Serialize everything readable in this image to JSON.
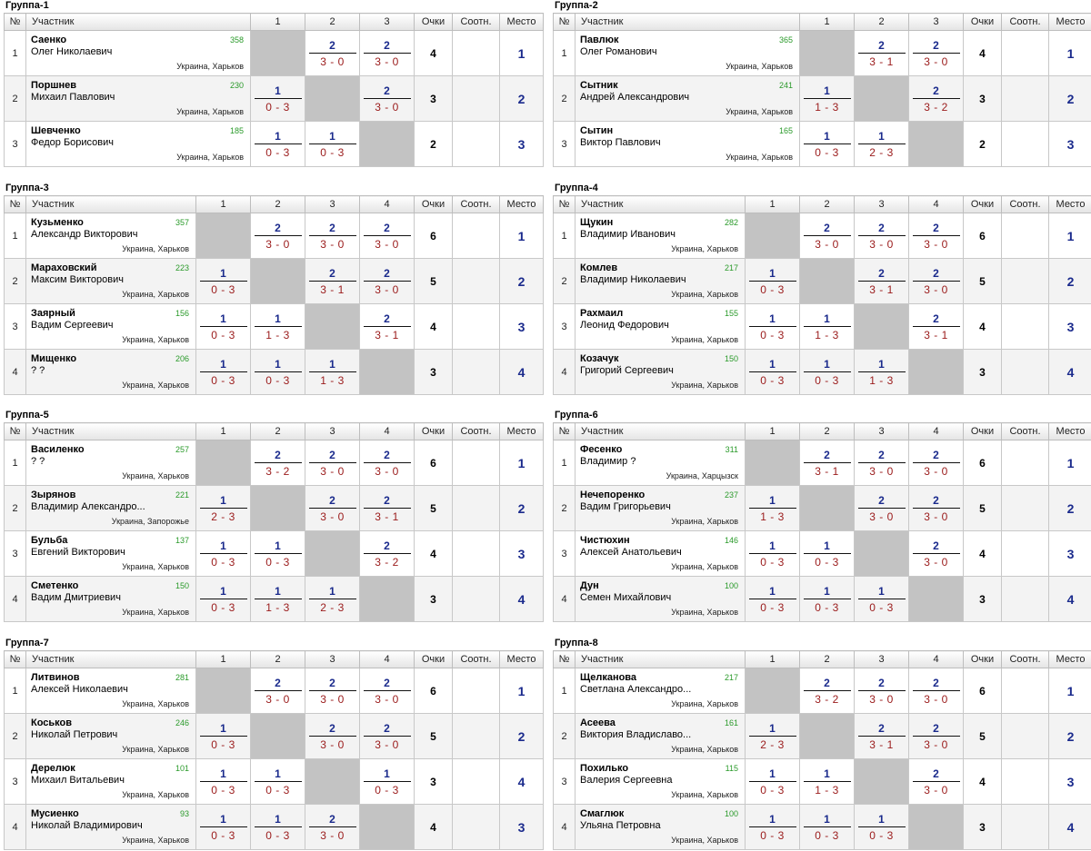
{
  "labels": {
    "num": "№",
    "participant": "Участник",
    "points": "Очки",
    "ratio": "Соотн.",
    "place": "Место"
  },
  "groups": [
    {
      "title": "Группа-1",
      "cols": [
        "1",
        "2",
        "3"
      ],
      "players": [
        {
          "num": "1",
          "surname": "Саенко",
          "firstname": "Олег Николаевич",
          "rating": "358",
          "city": "Украина, Харьков",
          "results": [
            null,
            {
              "w": "2",
              "s": "3 - 0"
            },
            {
              "w": "2",
              "s": "3 - 0"
            }
          ],
          "points": "4",
          "ratio": "",
          "place": "1"
        },
        {
          "num": "2",
          "surname": "Поршнев",
          "firstname": "Михаил Павлович",
          "rating": "230",
          "city": "Украина, Харьков",
          "results": [
            {
              "w": "1",
              "s": "0 - 3"
            },
            null,
            {
              "w": "2",
              "s": "3 - 0"
            }
          ],
          "points": "3",
          "ratio": "",
          "place": "2"
        },
        {
          "num": "3",
          "surname": "Шевченко",
          "firstname": "Федор Борисович",
          "rating": "185",
          "city": "Украина, Харьков",
          "results": [
            {
              "w": "1",
              "s": "0 - 3"
            },
            {
              "w": "1",
              "s": "0 - 3"
            },
            null
          ],
          "points": "2",
          "ratio": "",
          "place": "3"
        }
      ]
    },
    {
      "title": "Группа-2",
      "cols": [
        "1",
        "2",
        "3"
      ],
      "players": [
        {
          "num": "1",
          "surname": "Павлюк",
          "firstname": "Олег Романович",
          "rating": "365",
          "city": "Украина, Харьков",
          "results": [
            null,
            {
              "w": "2",
              "s": "3 - 1"
            },
            {
              "w": "2",
              "s": "3 - 0"
            }
          ],
          "points": "4",
          "ratio": "",
          "place": "1"
        },
        {
          "num": "2",
          "surname": "Сытник",
          "firstname": "Андрей Александрович",
          "rating": "241",
          "city": "Украина, Харьков",
          "results": [
            {
              "w": "1",
              "s": "1 - 3"
            },
            null,
            {
              "w": "2",
              "s": "3 - 2"
            }
          ],
          "points": "3",
          "ratio": "",
          "place": "2"
        },
        {
          "num": "3",
          "surname": "Сытин",
          "firstname": "Виктор Павлович",
          "rating": "165",
          "city": "Украина, Харьков",
          "results": [
            {
              "w": "1",
              "s": "0 - 3"
            },
            {
              "w": "1",
              "s": "2 - 3"
            },
            null
          ],
          "points": "2",
          "ratio": "",
          "place": "3"
        }
      ]
    },
    {
      "title": "Группа-3",
      "cols": [
        "1",
        "2",
        "3",
        "4"
      ],
      "players": [
        {
          "num": "1",
          "surname": "Кузьменко",
          "firstname": "Александр Викторович",
          "rating": "357",
          "city": "Украина, Харьков",
          "results": [
            null,
            {
              "w": "2",
              "s": "3 - 0"
            },
            {
              "w": "2",
              "s": "3 - 0"
            },
            {
              "w": "2",
              "s": "3 - 0"
            }
          ],
          "points": "6",
          "ratio": "",
          "place": "1"
        },
        {
          "num": "2",
          "surname": "Мараховский",
          "firstname": "Максим Викторович",
          "rating": "223",
          "city": "Украина, Харьков",
          "results": [
            {
              "w": "1",
              "s": "0 - 3"
            },
            null,
            {
              "w": "2",
              "s": "3 - 1"
            },
            {
              "w": "2",
              "s": "3 - 0"
            }
          ],
          "points": "5",
          "ratio": "",
          "place": "2"
        },
        {
          "num": "3",
          "surname": "Заярный",
          "firstname": "Вадим Сергеевич",
          "rating": "156",
          "city": "Украина, Харьков",
          "results": [
            {
              "w": "1",
              "s": "0 - 3"
            },
            {
              "w": "1",
              "s": "1 - 3"
            },
            null,
            {
              "w": "2",
              "s": "3 - 1"
            }
          ],
          "points": "4",
          "ratio": "",
          "place": "3"
        },
        {
          "num": "4",
          "surname": "Мищенко",
          "firstname": "? ?",
          "rating": "206",
          "city": "Украина, Харьков",
          "results": [
            {
              "w": "1",
              "s": "0 - 3"
            },
            {
              "w": "1",
              "s": "0 - 3"
            },
            {
              "w": "1",
              "s": "1 - 3"
            },
            null
          ],
          "points": "3",
          "ratio": "",
          "place": "4"
        }
      ]
    },
    {
      "title": "Группа-4",
      "cols": [
        "1",
        "2",
        "3",
        "4"
      ],
      "players": [
        {
          "num": "1",
          "surname": "Щукин",
          "firstname": "Владимир Иванович",
          "rating": "282",
          "city": "Украина, Харьков",
          "results": [
            null,
            {
              "w": "2",
              "s": "3 - 0"
            },
            {
              "w": "2",
              "s": "3 - 0"
            },
            {
              "w": "2",
              "s": "3 - 0"
            }
          ],
          "points": "6",
          "ratio": "",
          "place": "1"
        },
        {
          "num": "2",
          "surname": "Комлев",
          "firstname": "Владимир Николаевич",
          "rating": "217",
          "city": "Украина, Харьков",
          "results": [
            {
              "w": "1",
              "s": "0 - 3"
            },
            null,
            {
              "w": "2",
              "s": "3 - 1"
            },
            {
              "w": "2",
              "s": "3 - 0"
            }
          ],
          "points": "5",
          "ratio": "",
          "place": "2"
        },
        {
          "num": "3",
          "surname": "Рахмаил",
          "firstname": "Леонид Федорович",
          "rating": "155",
          "city": "Украина, Харьков",
          "results": [
            {
              "w": "1",
              "s": "0 - 3"
            },
            {
              "w": "1",
              "s": "1 - 3"
            },
            null,
            {
              "w": "2",
              "s": "3 - 1"
            }
          ],
          "points": "4",
          "ratio": "",
          "place": "3"
        },
        {
          "num": "4",
          "surname": "Козачук",
          "firstname": "Григорий Сергеевич",
          "rating": "150",
          "city": "Украина, Харьков",
          "results": [
            {
              "w": "1",
              "s": "0 - 3"
            },
            {
              "w": "1",
              "s": "0 - 3"
            },
            {
              "w": "1",
              "s": "1 - 3"
            },
            null
          ],
          "points": "3",
          "ratio": "",
          "place": "4"
        }
      ]
    },
    {
      "title": "Группа-5",
      "cols": [
        "1",
        "2",
        "3",
        "4"
      ],
      "players": [
        {
          "num": "1",
          "surname": "Василенко",
          "firstname": "? ?",
          "rating": "257",
          "city": "Украина, Харьков",
          "results": [
            null,
            {
              "w": "2",
              "s": "3 - 2"
            },
            {
              "w": "2",
              "s": "3 - 0"
            },
            {
              "w": "2",
              "s": "3 - 0"
            }
          ],
          "points": "6",
          "ratio": "",
          "place": "1"
        },
        {
          "num": "2",
          "surname": "Зырянов",
          "firstname": "Владимир Александро...",
          "rating": "221",
          "city": "Украина, Запорожье",
          "results": [
            {
              "w": "1",
              "s": "2 - 3"
            },
            null,
            {
              "w": "2",
              "s": "3 - 0"
            },
            {
              "w": "2",
              "s": "3 - 1"
            }
          ],
          "points": "5",
          "ratio": "",
          "place": "2"
        },
        {
          "num": "3",
          "surname": "Бульба",
          "firstname": "Евгений Викторович",
          "rating": "137",
          "city": "Украина, Харьков",
          "results": [
            {
              "w": "1",
              "s": "0 - 3"
            },
            {
              "w": "1",
              "s": "0 - 3"
            },
            null,
            {
              "w": "2",
              "s": "3 - 2"
            }
          ],
          "points": "4",
          "ratio": "",
          "place": "3"
        },
        {
          "num": "4",
          "surname": "Сметенко",
          "firstname": "Вадим Дмитриевич",
          "rating": "150",
          "city": "Украина, Харьков",
          "results": [
            {
              "w": "1",
              "s": "0 - 3"
            },
            {
              "w": "1",
              "s": "1 - 3"
            },
            {
              "w": "1",
              "s": "2 - 3"
            },
            null
          ],
          "points": "3",
          "ratio": "",
          "place": "4"
        }
      ]
    },
    {
      "title": "Группа-6",
      "cols": [
        "1",
        "2",
        "3",
        "4"
      ],
      "players": [
        {
          "num": "1",
          "surname": "Фесенко",
          "firstname": "Владимир ?",
          "rating": "311",
          "city": "Украина, Харцызск",
          "results": [
            null,
            {
              "w": "2",
              "s": "3 - 1"
            },
            {
              "w": "2",
              "s": "3 - 0"
            },
            {
              "w": "2",
              "s": "3 - 0"
            }
          ],
          "points": "6",
          "ratio": "",
          "place": "1"
        },
        {
          "num": "2",
          "surname": "Нечепоренко",
          "firstname": "Вадим Григорьевич",
          "rating": "237",
          "city": "Украина, Харьков",
          "results": [
            {
              "w": "1",
              "s": "1 - 3"
            },
            null,
            {
              "w": "2",
              "s": "3 - 0"
            },
            {
              "w": "2",
              "s": "3 - 0"
            }
          ],
          "points": "5",
          "ratio": "",
          "place": "2"
        },
        {
          "num": "3",
          "surname": "Чистюхин",
          "firstname": "Алексей Анатольевич",
          "rating": "146",
          "city": "Украина, Харьков",
          "results": [
            {
              "w": "1",
              "s": "0 - 3"
            },
            {
              "w": "1",
              "s": "0 - 3"
            },
            null,
            {
              "w": "2",
              "s": "3 - 0"
            }
          ],
          "points": "4",
          "ratio": "",
          "place": "3"
        },
        {
          "num": "4",
          "surname": "Дун",
          "firstname": "Семен Михайлович",
          "rating": "100",
          "city": "Украина, Харьков",
          "results": [
            {
              "w": "1",
              "s": "0 - 3"
            },
            {
              "w": "1",
              "s": "0 - 3"
            },
            {
              "w": "1",
              "s": "0 - 3"
            },
            null
          ],
          "points": "3",
          "ratio": "",
          "place": "4"
        }
      ]
    },
    {
      "title": "Группа-7",
      "cols": [
        "1",
        "2",
        "3",
        "4"
      ],
      "players": [
        {
          "num": "1",
          "surname": "Литвинов",
          "firstname": "Алексей Николаевич",
          "rating": "281",
          "city": "Украина, Харьков",
          "results": [
            null,
            {
              "w": "2",
              "s": "3 - 0"
            },
            {
              "w": "2",
              "s": "3 - 0"
            },
            {
              "w": "2",
              "s": "3 - 0"
            }
          ],
          "points": "6",
          "ratio": "",
          "place": "1"
        },
        {
          "num": "2",
          "surname": "Коськов",
          "firstname": "Николай Петрович",
          "rating": "246",
          "city": "Украина, Харьков",
          "results": [
            {
              "w": "1",
              "s": "0 - 3"
            },
            null,
            {
              "w": "2",
              "s": "3 - 0"
            },
            {
              "w": "2",
              "s": "3 - 0"
            }
          ],
          "points": "5",
          "ratio": "",
          "place": "2"
        },
        {
          "num": "3",
          "surname": "Дерелюк",
          "firstname": "Михаил Витальевич",
          "rating": "101",
          "city": "Украина, Харьков",
          "results": [
            {
              "w": "1",
              "s": "0 - 3"
            },
            {
              "w": "1",
              "s": "0 - 3"
            },
            null,
            {
              "w": "1",
              "s": "0 - 3"
            }
          ],
          "points": "3",
          "ratio": "",
          "place": "4"
        },
        {
          "num": "4",
          "surname": "Мусиенко",
          "firstname": "Николай Владимирович",
          "rating": "93",
          "city": "Украина, Харьков",
          "results": [
            {
              "w": "1",
              "s": "0 - 3"
            },
            {
              "w": "1",
              "s": "0 - 3"
            },
            {
              "w": "2",
              "s": "3 - 0"
            },
            null
          ],
          "points": "4",
          "ratio": "",
          "place": "3"
        }
      ]
    },
    {
      "title": "Группа-8",
      "cols": [
        "1",
        "2",
        "3",
        "4"
      ],
      "players": [
        {
          "num": "1",
          "surname": "Щелканова",
          "firstname": "Светлана Александро...",
          "rating": "217",
          "city": "Украина, Харьков",
          "results": [
            null,
            {
              "w": "2",
              "s": "3 - 2"
            },
            {
              "w": "2",
              "s": "3 - 0"
            },
            {
              "w": "2",
              "s": "3 - 0"
            }
          ],
          "points": "6",
          "ratio": "",
          "place": "1"
        },
        {
          "num": "2",
          "surname": "Асеева",
          "firstname": "Виктория Владиславо...",
          "rating": "161",
          "city": "Украина, Харьков",
          "results": [
            {
              "w": "1",
              "s": "2 - 3"
            },
            null,
            {
              "w": "2",
              "s": "3 - 1"
            },
            {
              "w": "2",
              "s": "3 - 0"
            }
          ],
          "points": "5",
          "ratio": "",
          "place": "2"
        },
        {
          "num": "3",
          "surname": "Похилько",
          "firstname": "Валерия Сергеевна",
          "rating": "115",
          "city": "Украина, Харьков",
          "results": [
            {
              "w": "1",
              "s": "0 - 3"
            },
            {
              "w": "1",
              "s": "1 - 3"
            },
            null,
            {
              "w": "2",
              "s": "3 - 0"
            }
          ],
          "points": "4",
          "ratio": "",
          "place": "3"
        },
        {
          "num": "4",
          "surname": "Смаглюк",
          "firstname": "Ульяна Петровна",
          "rating": "100",
          "city": "Украина, Харьков",
          "results": [
            {
              "w": "1",
              "s": "0 - 3"
            },
            {
              "w": "1",
              "s": "0 - 3"
            },
            {
              "w": "1",
              "s": "0 - 3"
            },
            null
          ],
          "points": "3",
          "ratio": "",
          "place": "4"
        }
      ]
    }
  ]
}
